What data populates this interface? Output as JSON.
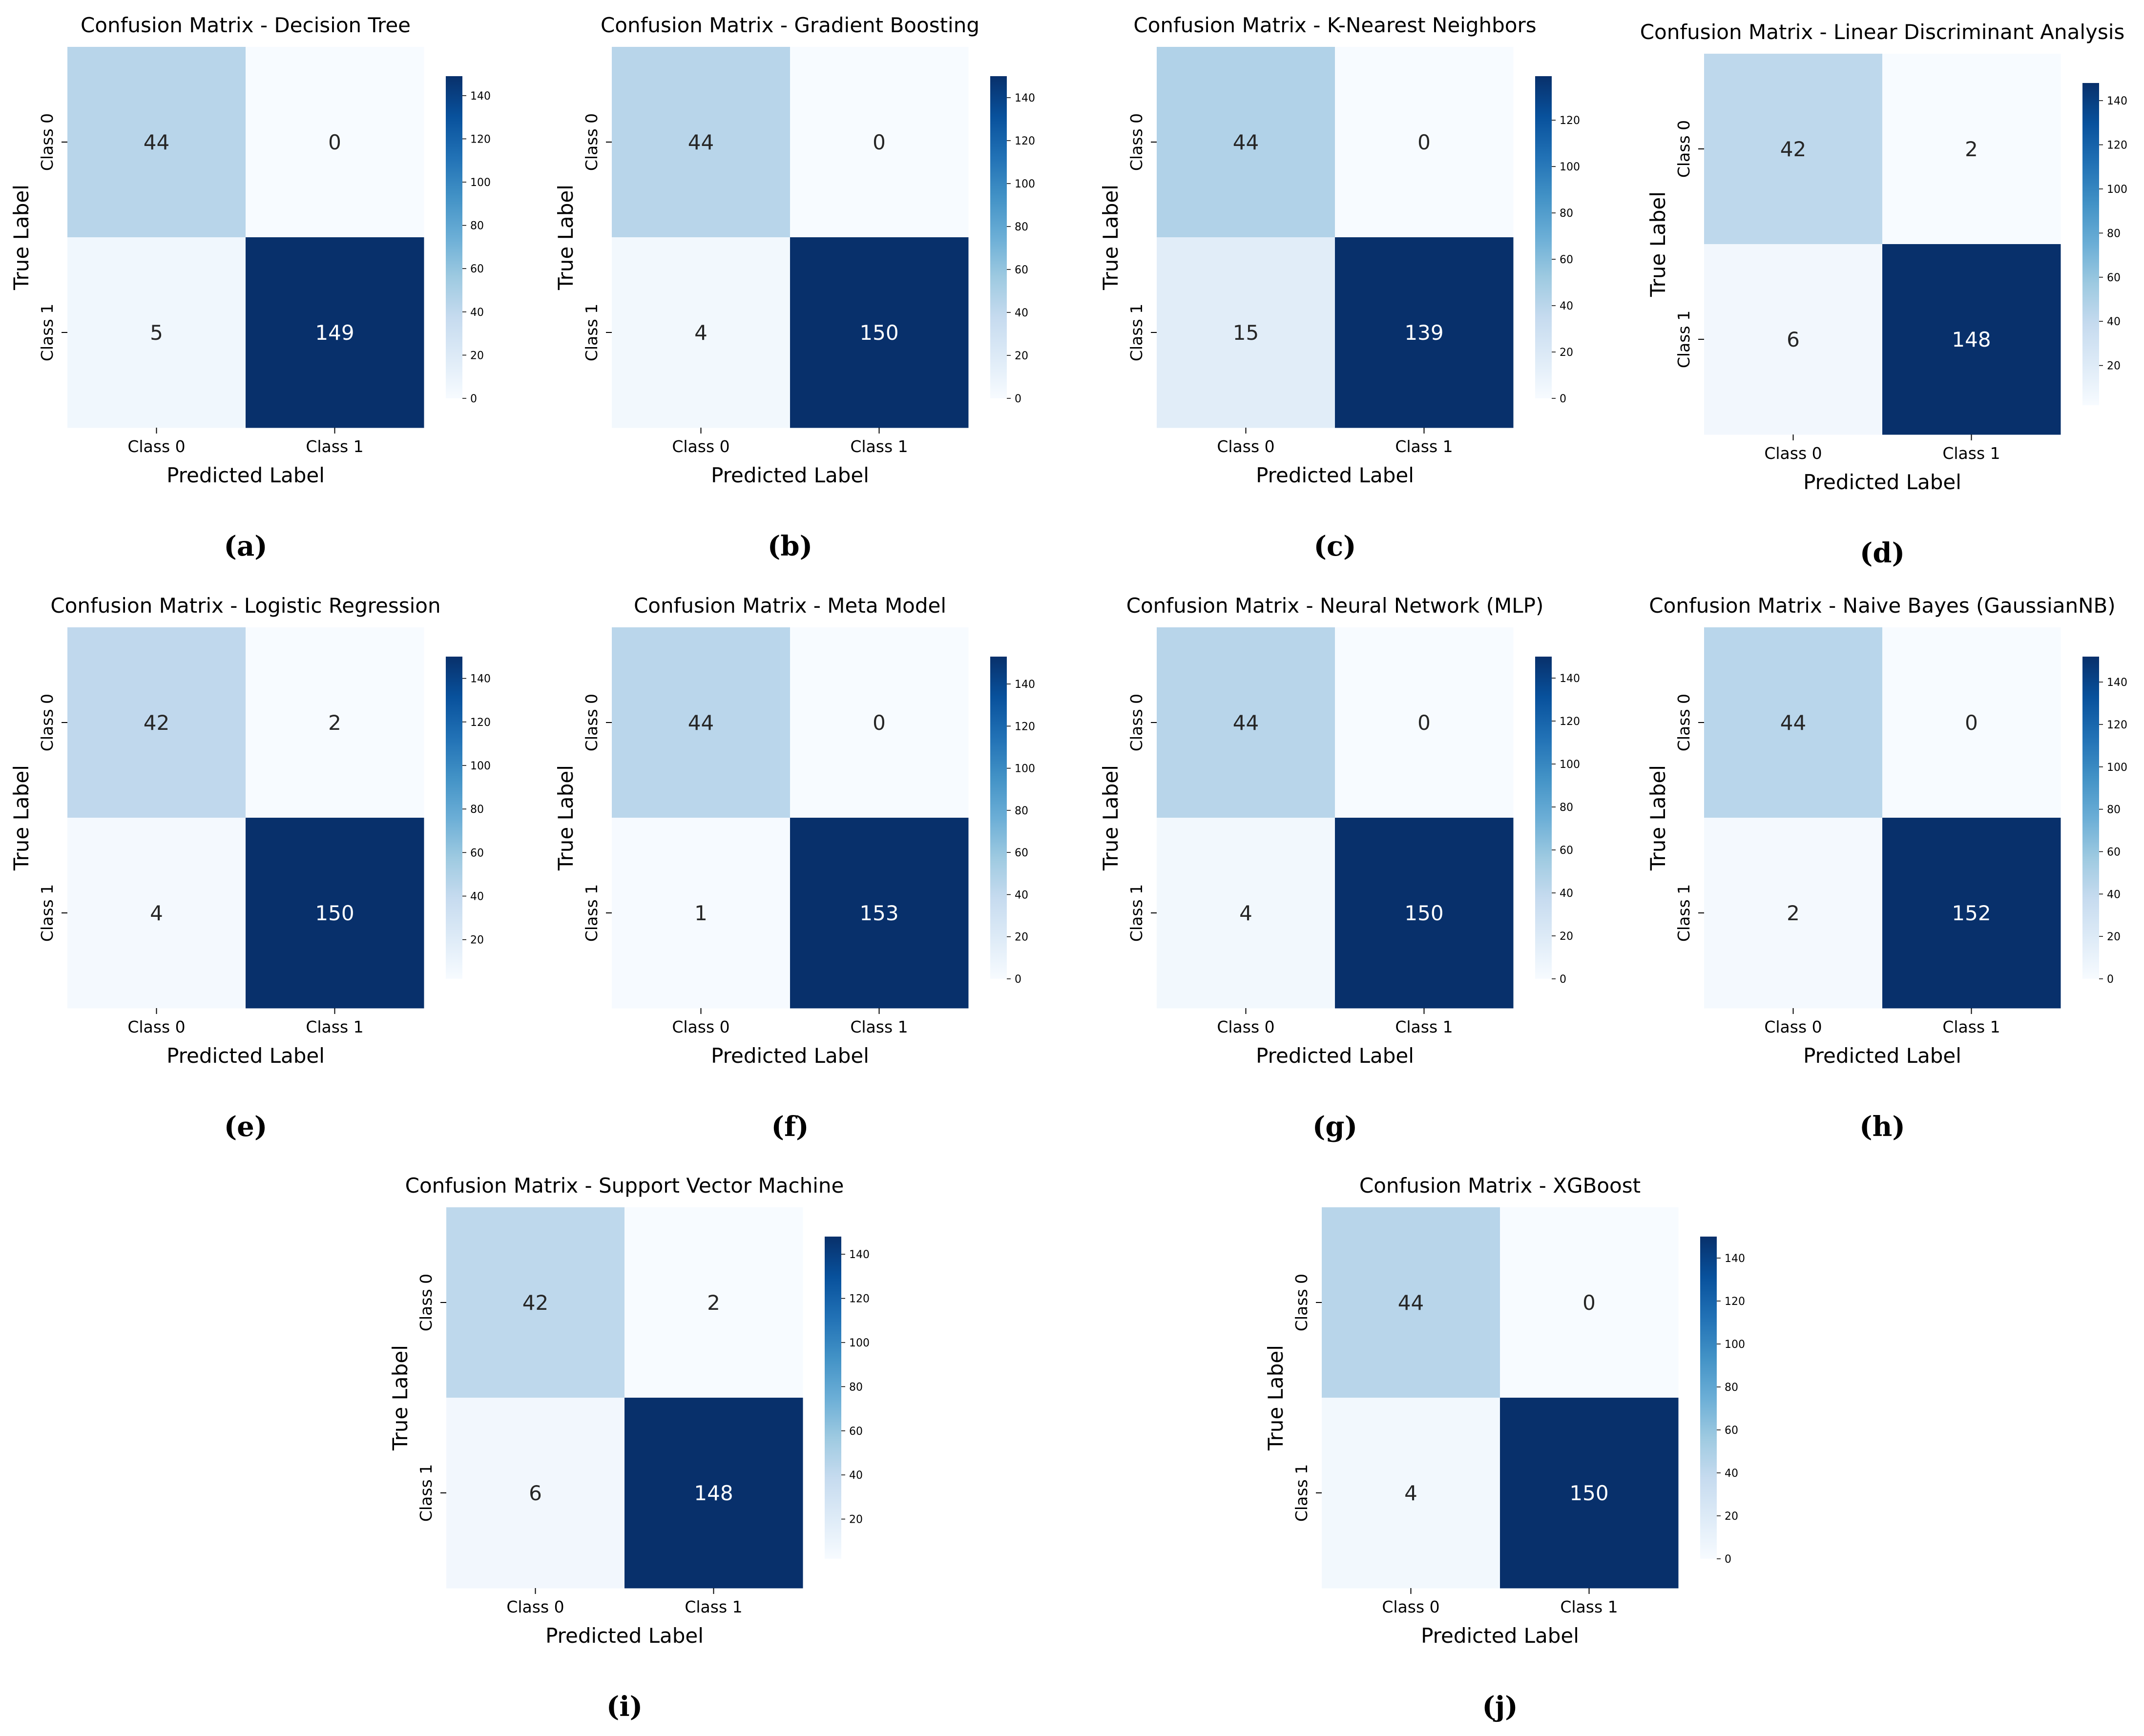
{
  "figure": {
    "row_label": "Class",
    "colorscale": [
      "#f7fbff",
      "#deebf7",
      "#c6dbef",
      "#9ecae1",
      "#6baed6",
      "#4292c6",
      "#2171b5",
      "#08519c",
      "#08306b"
    ],
    "dark_text_color": "#262626",
    "light_text_color": "#ffffff"
  },
  "chart_data": [
    {
      "type": "heatmap",
      "caption": "(a)",
      "title": "Confusion Matrix - Decision Tree",
      "xlabel": "Predicted Label",
      "ylabel": "True Label",
      "x_categories": [
        "Class 0",
        "Class 1"
      ],
      "y_categories": [
        "Class 0",
        "Class 1"
      ],
      "values": [
        [
          44,
          0
        ],
        [
          5,
          149
        ]
      ],
      "vmin": 0,
      "vmax": 149,
      "colorbar_ticks": [
        0,
        20,
        40,
        60,
        80,
        100,
        120,
        140
      ]
    },
    {
      "type": "heatmap",
      "caption": "(b)",
      "title": "Confusion Matrix - Gradient Boosting",
      "xlabel": "Predicted Label",
      "ylabel": "True Label",
      "x_categories": [
        "Class 0",
        "Class 1"
      ],
      "y_categories": [
        "Class 0",
        "Class 1"
      ],
      "values": [
        [
          44,
          0
        ],
        [
          4,
          150
        ]
      ],
      "vmin": 0,
      "vmax": 150,
      "colorbar_ticks": [
        0,
        20,
        40,
        60,
        80,
        100,
        120,
        140
      ]
    },
    {
      "type": "heatmap",
      "caption": "(c)",
      "title": "Confusion Matrix - K-Nearest Neighbors",
      "xlabel": "Predicted Label",
      "ylabel": "True Label",
      "x_categories": [
        "Class 0",
        "Class 1"
      ],
      "y_categories": [
        "Class 0",
        "Class 1"
      ],
      "values": [
        [
          44,
          0
        ],
        [
          15,
          139
        ]
      ],
      "vmin": 0,
      "vmax": 139,
      "colorbar_ticks": [
        0,
        20,
        40,
        60,
        80,
        100,
        120
      ]
    },
    {
      "type": "heatmap",
      "caption": "(d)",
      "title": "Confusion Matrix - Linear Discriminant Analysis",
      "xlabel": "Predicted Label",
      "ylabel": "True Label",
      "x_categories": [
        "Class 0",
        "Class 1"
      ],
      "y_categories": [
        "Class 0",
        "Class 1"
      ],
      "values": [
        [
          42,
          2
        ],
        [
          6,
          148
        ]
      ],
      "vmin": 2,
      "vmax": 148,
      "colorbar_ticks": [
        20,
        40,
        60,
        80,
        100,
        120,
        140
      ]
    },
    {
      "type": "heatmap",
      "caption": "(e)",
      "title": "Confusion Matrix - Logistic Regression",
      "xlabel": "Predicted Label",
      "ylabel": "True Label",
      "x_categories": [
        "Class 0",
        "Class 1"
      ],
      "y_categories": [
        "Class 0",
        "Class 1"
      ],
      "values": [
        [
          42,
          2
        ],
        [
          4,
          150
        ]
      ],
      "vmin": 2,
      "vmax": 150,
      "colorbar_ticks": [
        20,
        40,
        60,
        80,
        100,
        120,
        140
      ]
    },
    {
      "type": "heatmap",
      "caption": "(f)",
      "title": "Confusion Matrix - Meta Model",
      "xlabel": "Predicted Label",
      "ylabel": "True Label",
      "x_categories": [
        "Class 0",
        "Class 1"
      ],
      "y_categories": [
        "Class 0",
        "Class 1"
      ],
      "values": [
        [
          44,
          0
        ],
        [
          1,
          153
        ]
      ],
      "vmin": 0,
      "vmax": 153,
      "colorbar_ticks": [
        0,
        20,
        40,
        60,
        80,
        100,
        120,
        140
      ]
    },
    {
      "type": "heatmap",
      "caption": "(g)",
      "title": "Confusion Matrix - Neural Network (MLP)",
      "xlabel": "Predicted Label",
      "ylabel": "True Label",
      "x_categories": [
        "Class 0",
        "Class 1"
      ],
      "y_categories": [
        "Class 0",
        "Class 1"
      ],
      "values": [
        [
          44,
          0
        ],
        [
          4,
          150
        ]
      ],
      "vmin": 0,
      "vmax": 150,
      "colorbar_ticks": [
        0,
        20,
        40,
        60,
        80,
        100,
        120,
        140
      ]
    },
    {
      "type": "heatmap",
      "caption": "(h)",
      "title": "Confusion Matrix - Naive Bayes (GaussianNB)",
      "xlabel": "Predicted Label",
      "ylabel": "True Label",
      "x_categories": [
        "Class 0",
        "Class 1"
      ],
      "y_categories": [
        "Class 0",
        "Class 1"
      ],
      "values": [
        [
          44,
          0
        ],
        [
          2,
          152
        ]
      ],
      "vmin": 0,
      "vmax": 152,
      "colorbar_ticks": [
        0,
        20,
        40,
        60,
        80,
        100,
        120,
        140
      ]
    },
    {
      "type": "heatmap",
      "caption": "(i)",
      "title": "Confusion Matrix - Support Vector Machine",
      "xlabel": "Predicted Label",
      "ylabel": "True Label",
      "x_categories": [
        "Class 0",
        "Class 1"
      ],
      "y_categories": [
        "Class 0",
        "Class 1"
      ],
      "values": [
        [
          42,
          2
        ],
        [
          6,
          148
        ]
      ],
      "vmin": 2,
      "vmax": 148,
      "colorbar_ticks": [
        20,
        40,
        60,
        80,
        100,
        120,
        140
      ]
    },
    {
      "type": "heatmap",
      "caption": "(j)",
      "title": "Confusion Matrix - XGBoost",
      "xlabel": "Predicted Label",
      "ylabel": "True Label",
      "x_categories": [
        "Class 0",
        "Class 1"
      ],
      "y_categories": [
        "Class 0",
        "Class 1"
      ],
      "values": [
        [
          44,
          0
        ],
        [
          4,
          150
        ]
      ],
      "vmin": 0,
      "vmax": 150,
      "colorbar_ticks": [
        0,
        20,
        40,
        60,
        80,
        100,
        120,
        140
      ]
    }
  ]
}
